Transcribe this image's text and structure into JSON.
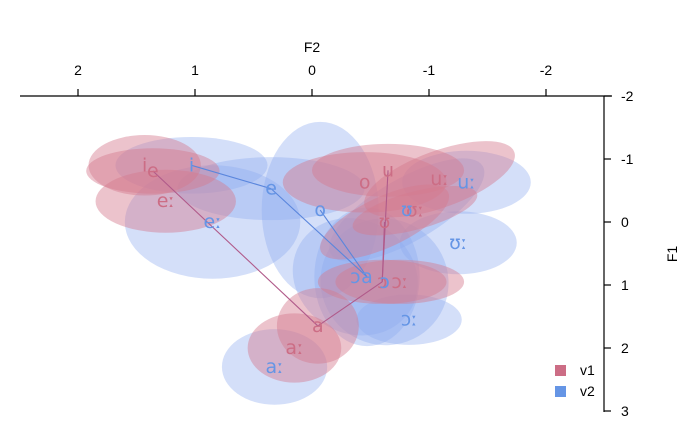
{
  "chart_data": {
    "type": "scatter",
    "subtype": "vowel-space formant plot with confidence ellipses",
    "xlabel": "F2",
    "ylabel": "F1",
    "xlim": [
      2.5,
      -2.5
    ],
    "ylim": [
      -2,
      3
    ],
    "x_axis_position": "top",
    "y_axis_position": "right",
    "x_reversed": true,
    "y_reversed": true,
    "grid": false,
    "legend_position": "bottom-right",
    "x_ticks": [
      2,
      1,
      0,
      -1,
      -2
    ],
    "x_tick_labels": [
      "2",
      "1",
      "0",
      "-1",
      "-2"
    ],
    "y_ticks": [
      -2,
      -1,
      0,
      1,
      2,
      3
    ],
    "y_tick_labels": [
      "-2",
      "-1",
      "0",
      "1",
      "2",
      "3"
    ],
    "colors": {
      "v1": "#cc6d85",
      "v2": "#6595e5",
      "v1_fill": "#d47b8e",
      "v2_fill": "#8eacf0",
      "connector": "#b05a8a",
      "connector_v2": "#5a86dd"
    },
    "series": [
      {
        "name": "v1",
        "color": "#cc6d85",
        "points": [
          {
            "label": "i",
            "x": 1.43,
            "y": -0.9,
            "rx": 0.48,
            "ry": 0.48,
            "angle": 0
          },
          {
            "label": "e",
            "x": 1.36,
            "y": -0.81,
            "rx": 0.57,
            "ry": 0.36,
            "angle": 0
          },
          {
            "label": "eː",
            "x": 1.25,
            "y": -0.33,
            "rx": 0.6,
            "ry": 0.5,
            "angle": 0
          },
          {
            "label": "o",
            "x": -0.45,
            "y": -0.63,
            "rx": 0.7,
            "ry": 0.48,
            "angle": 0
          },
          {
            "label": "u",
            "x": -0.65,
            "y": -0.82,
            "rx": 0.65,
            "ry": 0.42,
            "angle": 0
          },
          {
            "label": "uː",
            "x": -1.09,
            "y": -0.68,
            "rx": 0.68,
            "ry": 0.45,
            "angle": -20
          },
          {
            "label": "ʊː",
            "x": -0.88,
            "y": -0.18,
            "rx": 0.55,
            "ry": 0.3,
            "angle": -15
          },
          {
            "label": "ʊ",
            "x": -0.62,
            "y": 0.0,
            "rx": 0.6,
            "ry": 0.4,
            "angle": -25
          },
          {
            "label": "ɔ",
            "x": -0.6,
            "y": 0.95,
            "rx": 0.55,
            "ry": 0.35,
            "angle": 0
          },
          {
            "label": "ɔː",
            "x": -0.75,
            "y": 0.95,
            "rx": 0.55,
            "ry": 0.35,
            "angle": 0
          },
          {
            "label": "a",
            "x": -0.05,
            "y": 1.65,
            "rx": 0.35,
            "ry": 0.6,
            "angle": 0
          },
          {
            "label": "aː",
            "x": 0.15,
            "y": 2.0,
            "rx": 0.4,
            "ry": 0.55,
            "angle": 0
          }
        ]
      },
      {
        "name": "v2",
        "color": "#6595e5",
        "points": [
          {
            "label": "i",
            "x": 1.03,
            "y": -0.9,
            "rx": 0.65,
            "ry": 0.45,
            "angle": 0
          },
          {
            "label": "e",
            "x": 0.35,
            "y": -0.53,
            "rx": 0.8,
            "ry": 0.5,
            "angle": 0
          },
          {
            "label": "eː",
            "x": 0.85,
            "y": 0.0,
            "rx": 0.75,
            "ry": 0.9,
            "angle": 0
          },
          {
            "label": "o",
            "x": -0.07,
            "y": -0.19,
            "rx": 0.5,
            "ry": 1.4,
            "angle": 0
          },
          {
            "label": "uː",
            "x": -1.32,
            "y": -0.63,
            "rx": 0.55,
            "ry": 0.5,
            "angle": 0
          },
          {
            "label": "ʊ",
            "x": -0.81,
            "y": -0.19,
            "rx": 0.75,
            "ry": 0.5,
            "angle": -30
          },
          {
            "label": "ʊː",
            "x": -1.25,
            "y": 0.33,
            "rx": 0.5,
            "ry": 0.5,
            "angle": 0
          },
          {
            "label": "ɔ",
            "x": -0.62,
            "y": 0.95,
            "rx": 0.55,
            "ry": 1.0,
            "angle": 30
          },
          {
            "label": "ɔː",
            "x": -0.83,
            "y": 1.55,
            "rx": 0.45,
            "ry": 0.4,
            "angle": 0
          },
          {
            "label": "ɔ",
            "x": -0.37,
            "y": 0.87,
            "rx": 0.55,
            "ry": 0.9,
            "angle": 30
          },
          {
            "label": "a",
            "x": -0.47,
            "y": 0.87,
            "rx": 0.45,
            "ry": 1.1,
            "angle": 0
          },
          {
            "label": "aː",
            "x": 0.32,
            "y": 2.3,
            "rx": 0.45,
            "ry": 0.6,
            "angle": 0
          }
        ]
      }
    ],
    "connectors": [
      {
        "series": "v2",
        "from": "i",
        "to": "e"
      },
      {
        "series": "v2",
        "from": "e",
        "to": "a"
      },
      {
        "series": "v2",
        "from": "o",
        "to": "a"
      },
      {
        "series": "v1",
        "from": "e",
        "to": "a"
      },
      {
        "series": "v1",
        "from": "u",
        "to": "ɔ"
      },
      {
        "series": "v1",
        "from": "ʊ",
        "to": "ɔ"
      },
      {
        "series": "v1",
        "from": "a",
        "to": "ɔ"
      }
    ],
    "legend": [
      {
        "label": "v1",
        "color": "#cc6d85"
      },
      {
        "label": "v2",
        "color": "#6595e5"
      }
    ]
  }
}
